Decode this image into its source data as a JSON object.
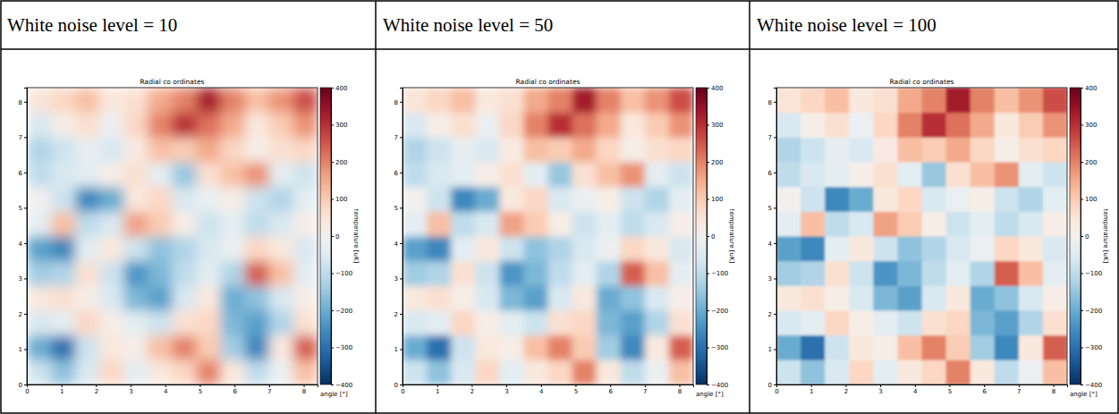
{
  "table": {
    "headers": [
      "White noise level = 10",
      "White noise level = 50",
      "White noise level = 100"
    ]
  },
  "chart_data": [
    {
      "type": "heatmap",
      "title": "Radial co ordinates",
      "xlabel": "angle [°]",
      "color": "RdBu_r",
      "xlim": [
        0,
        8.4
      ],
      "ylim": [
        0,
        8.4
      ],
      "xticks": [
        0,
        1,
        2,
        3,
        4,
        5,
        6,
        7,
        8
      ],
      "yticks": [
        0,
        1,
        2,
        3,
        4,
        5,
        6,
        7,
        8
      ],
      "xbins": [
        0,
        0.7,
        1.4,
        2.1,
        2.8,
        3.5,
        4.2,
        4.9,
        5.6,
        6.3,
        7.0,
        7.7,
        8.4
      ],
      "ybins": [
        0,
        0.7,
        1.4,
        2.1,
        2.8,
        3.5,
        4.2,
        4.9,
        5.6,
        6.3,
        7.0,
        7.7,
        8.4
      ],
      "values": [
        [
          -80,
          -160,
          -60,
          80,
          -40,
          40,
          80,
          200,
          40,
          -100,
          -20,
          120
        ],
        [
          -200,
          -300,
          -80,
          40,
          20,
          120,
          200,
          100,
          -140,
          -260,
          40,
          240
        ],
        [
          -60,
          -40,
          80,
          20,
          -40,
          -80,
          60,
          80,
          -180,
          -220,
          -120,
          60
        ],
        [
          40,
          60,
          20,
          -60,
          -180,
          -220,
          -60,
          40,
          -200,
          -160,
          -60,
          20
        ],
        [
          -140,
          -120,
          60,
          -80,
          -240,
          -180,
          -100,
          -40,
          -120,
          240,
          120,
          -40
        ],
        [
          -220,
          -260,
          -40,
          40,
          -80,
          -160,
          -120,
          -60,
          -20,
          80,
          40,
          -60
        ],
        [
          -40,
          120,
          -100,
          -60,
          160,
          100,
          20,
          -80,
          -40,
          -100,
          -60,
          20
        ],
        [
          0,
          -80,
          -260,
          -200,
          40,
          80,
          -60,
          -20,
          20,
          -80,
          -120,
          -40
        ],
        [
          -100,
          -60,
          -40,
          20,
          60,
          -40,
          -150,
          60,
          120,
          180,
          -40,
          -80
        ],
        [
          -120,
          -80,
          -30,
          -60,
          30,
          120,
          100,
          150,
          80,
          20,
          60,
          80
        ],
        [
          -60,
          20,
          60,
          -20,
          80,
          200,
          300,
          220,
          150,
          40,
          100,
          180
        ],
        [
          50,
          80,
          120,
          40,
          60,
          150,
          200,
          330,
          200,
          120,
          180,
          260
        ]
      ],
      "colorbar": {
        "label": "temperature [uK]",
        "range": [
          -400,
          400
        ],
        "ticks": [
          {
            "value": -400,
            "label": "−400"
          },
          {
            "value": -300,
            "label": "−300"
          },
          {
            "value": -200,
            "label": "−200"
          },
          {
            "value": -100,
            "label": "−100"
          },
          0,
          100,
          200,
          300,
          400
        ]
      }
    },
    {
      "type": "heatmap",
      "title": "Radial co ordinates",
      "xlabel": "angle [°]",
      "color": "RdBu_r",
      "xlim": [
        0,
        8.4
      ],
      "ylim": [
        0,
        8.4
      ],
      "xticks": [
        0,
        1,
        2,
        3,
        4,
        5,
        6,
        7,
        8
      ],
      "yticks": [
        0,
        1,
        2,
        3,
        4,
        5,
        6,
        7,
        8
      ],
      "xbins": [
        0,
        0.7,
        1.4,
        2.1,
        2.8,
        3.5,
        4.2,
        4.9,
        5.6,
        6.3,
        7.0,
        7.7,
        8.4
      ],
      "ybins": [
        0,
        0.7,
        1.4,
        2.1,
        2.8,
        3.5,
        4.2,
        4.9,
        5.6,
        6.3,
        7.0,
        7.7,
        8.4
      ],
      "values": [
        [
          -80,
          -160,
          -60,
          80,
          -40,
          40,
          80,
          200,
          40,
          -100,
          -20,
          120
        ],
        [
          -200,
          -300,
          -80,
          40,
          20,
          120,
          200,
          100,
          -140,
          -260,
          40,
          240
        ],
        [
          -60,
          -40,
          80,
          20,
          -40,
          -80,
          60,
          80,
          -180,
          -220,
          -120,
          60
        ],
        [
          40,
          60,
          20,
          -60,
          -180,
          -220,
          -60,
          40,
          -200,
          -160,
          -60,
          20
        ],
        [
          -140,
          -120,
          60,
          -80,
          -240,
          -180,
          -100,
          -40,
          -120,
          240,
          120,
          -40
        ],
        [
          -220,
          -260,
          -40,
          40,
          -80,
          -160,
          -120,
          -60,
          -20,
          80,
          40,
          -60
        ],
        [
          -40,
          120,
          -100,
          -60,
          160,
          100,
          20,
          -80,
          -40,
          -100,
          -60,
          20
        ],
        [
          0,
          -80,
          -260,
          -200,
          40,
          80,
          -60,
          -20,
          20,
          -80,
          -120,
          -40
        ],
        [
          -100,
          -60,
          -40,
          20,
          60,
          -40,
          -150,
          60,
          120,
          180,
          -40,
          -80
        ],
        [
          -120,
          -80,
          -30,
          -60,
          30,
          120,
          100,
          150,
          80,
          20,
          60,
          80
        ],
        [
          -60,
          20,
          60,
          -20,
          80,
          200,
          300,
          220,
          150,
          40,
          100,
          180
        ],
        [
          50,
          80,
          120,
          40,
          60,
          150,
          200,
          330,
          200,
          120,
          180,
          260
        ]
      ],
      "colorbar": {
        "label": "temperature [uK]",
        "range": [
          -400,
          400
        ],
        "ticks": [
          {
            "value": -400,
            "label": "−400"
          },
          {
            "value": -300,
            "label": "−300"
          },
          {
            "value": -200,
            "label": "−200"
          },
          {
            "value": -100,
            "label": "−100"
          },
          0,
          100,
          200,
          300,
          400
        ]
      }
    },
    {
      "type": "heatmap",
      "title": "Radial co ordinates",
      "xlabel": "angle [°]",
      "color": "RdBu_r",
      "xlim": [
        0,
        8.4
      ],
      "ylim": [
        0,
        8.4
      ],
      "xticks": [
        0,
        1,
        2,
        3,
        4,
        5,
        6,
        7,
        8
      ],
      "yticks": [
        0,
        1,
        2,
        3,
        4,
        5,
        6,
        7,
        8
      ],
      "xbins": [
        0,
        0.7,
        1.4,
        2.1,
        2.8,
        3.5,
        4.2,
        4.9,
        5.6,
        6.3,
        7.0,
        7.7,
        8.4
      ],
      "ybins": [
        0,
        0.7,
        1.4,
        2.1,
        2.8,
        3.5,
        4.2,
        4.9,
        5.6,
        6.3,
        7.0,
        7.7,
        8.4
      ],
      "values": [
        [
          -80,
          -160,
          -60,
          80,
          -40,
          40,
          80,
          200,
          40,
          -100,
          -20,
          120
        ],
        [
          -200,
          -300,
          -80,
          40,
          20,
          120,
          200,
          100,
          -140,
          -260,
          40,
          240
        ],
        [
          -60,
          -40,
          80,
          20,
          -40,
          -80,
          60,
          80,
          -180,
          -220,
          -120,
          60
        ],
        [
          40,
          60,
          20,
          -60,
          -180,
          -220,
          -60,
          40,
          -200,
          -160,
          -60,
          20
        ],
        [
          -140,
          -120,
          60,
          -80,
          -240,
          -180,
          -100,
          -40,
          -120,
          240,
          120,
          -40
        ],
        [
          -220,
          -260,
          -40,
          40,
          -80,
          -160,
          -120,
          -60,
          -20,
          80,
          40,
          -60
        ],
        [
          -40,
          120,
          -100,
          -60,
          160,
          100,
          20,
          -80,
          -40,
          -100,
          -60,
          20
        ],
        [
          0,
          -80,
          -260,
          -200,
          40,
          80,
          -60,
          -20,
          20,
          -80,
          -120,
          -40
        ],
        [
          -100,
          -60,
          -40,
          20,
          60,
          -40,
          -150,
          60,
          120,
          180,
          -40,
          -80
        ],
        [
          -120,
          -80,
          -30,
          -60,
          30,
          120,
          100,
          150,
          80,
          20,
          60,
          80
        ],
        [
          -60,
          20,
          60,
          -20,
          80,
          200,
          300,
          220,
          150,
          40,
          100,
          180
        ],
        [
          50,
          80,
          120,
          40,
          60,
          150,
          200,
          330,
          200,
          120,
          180,
          260
        ]
      ],
      "colorbar": {
        "label": "temperature [uK]",
        "range": [
          -400,
          400
        ],
        "ticks": [
          {
            "value": -400,
            "label": "−400"
          },
          {
            "value": -300,
            "label": "−300"
          },
          {
            "value": -200,
            "label": "−200"
          },
          {
            "value": -100,
            "label": "−100"
          },
          0,
          100,
          200,
          300,
          400
        ]
      }
    }
  ]
}
